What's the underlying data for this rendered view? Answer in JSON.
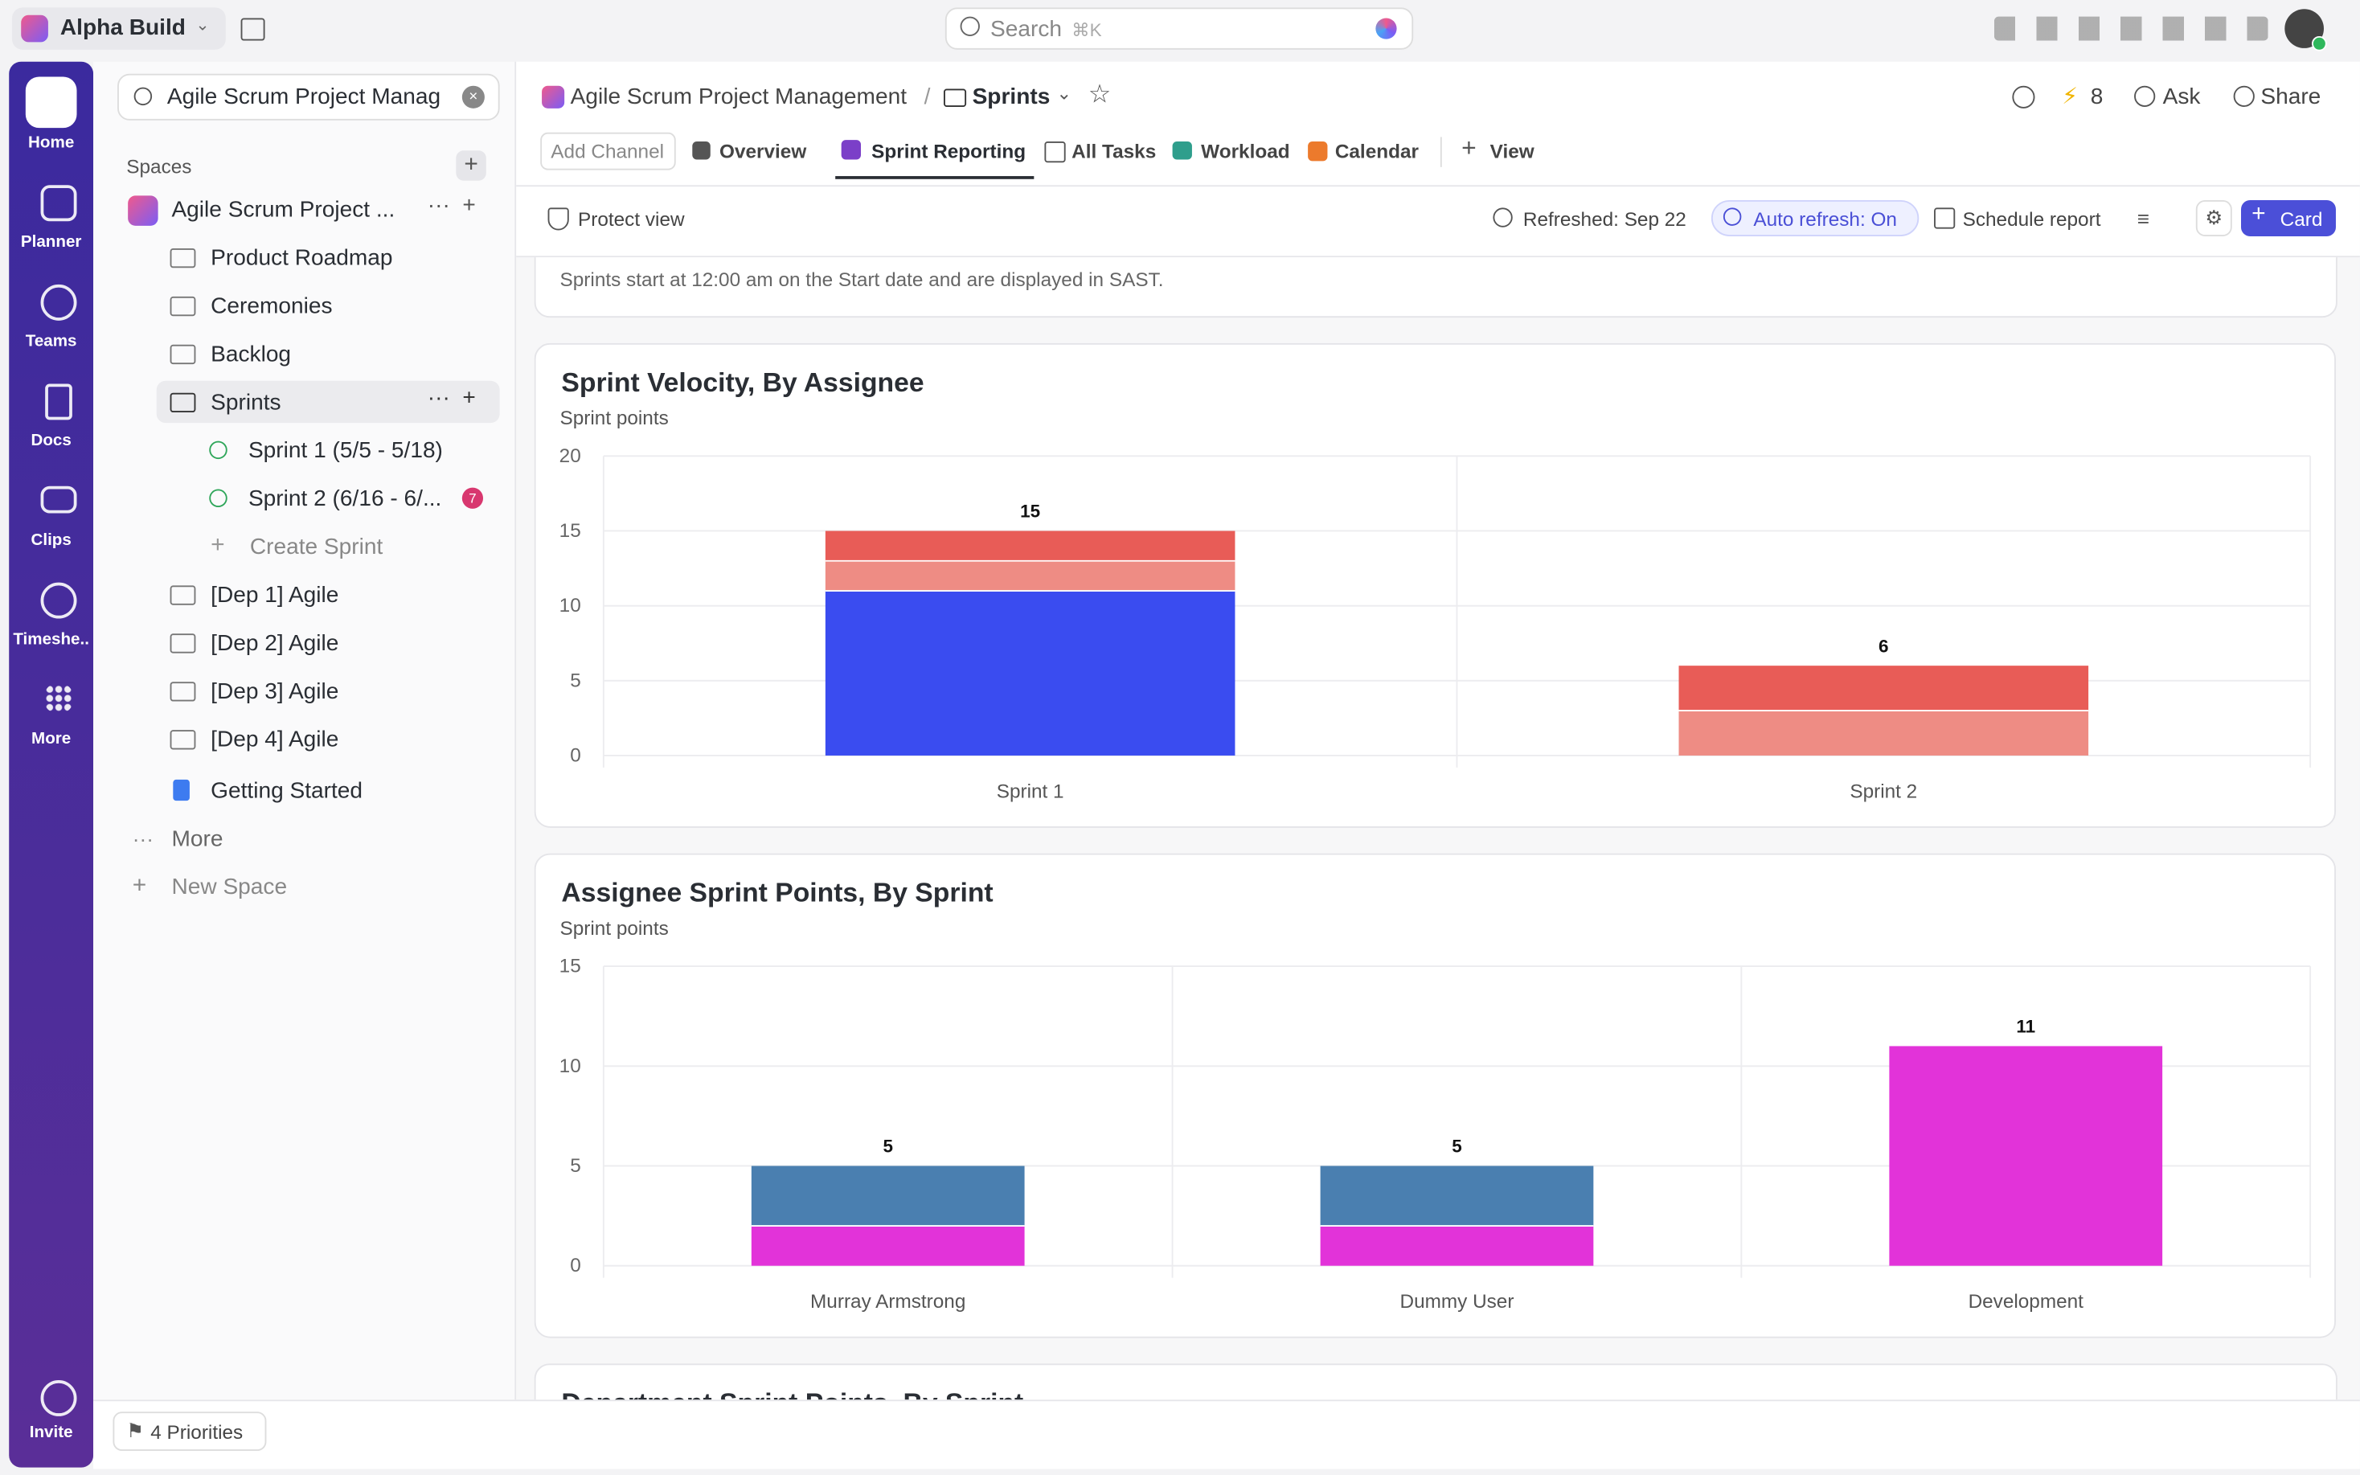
{
  "app": {
    "workspace": "Alpha Build",
    "search": "Search",
    "search_shortcut": "⌘K"
  },
  "rail": [
    "Home",
    "Planner",
    "Teams",
    "Docs",
    "Clips",
    "Timeshe..",
    "More",
    "Invite"
  ],
  "sidebar": {
    "search": "Agile Scrum Project Manag",
    "spaces": "Spaces",
    "space": "Agile Scrum Project ...",
    "folders": [
      "Product Roadmap",
      "Ceremonies",
      "Backlog",
      "Sprints"
    ],
    "sprints": [
      "Sprint 1 (5/5 - 5/18)",
      "Sprint 2 (6/16 - 6/..."
    ],
    "sprint_badge": 7,
    "create_sprint": "Create Sprint",
    "more_folders": [
      "[Dep 1] Agile",
      "[Dep 2] Agile",
      "[Dep 3] Agile",
      "[Dep 4] Agile"
    ],
    "doc": "Getting Started",
    "more": "More",
    "new_space": "New Space"
  },
  "bottom": {
    "priorities": "4 Priorities"
  },
  "header": {
    "breadcrumb": "Agile Scrum Project Management",
    "separator": "/",
    "current": "Sprints",
    "lightning_count": 8,
    "ask": "Ask",
    "share": "Share"
  },
  "tabs": [
    "Add Channel",
    "Overview",
    "Sprint Reporting",
    "All Tasks",
    "Workload",
    "Calendar",
    "View"
  ],
  "toolbar": {
    "protect": "Protect view",
    "refreshed": "Refreshed: Sep 22",
    "auto_refresh": "Auto refresh: On",
    "schedule": "Schedule report",
    "card": "Card"
  },
  "note": "Sprints start at 12:00 am on the Start date and are displayed in SAST.",
  "chart_data": [
    {
      "type": "bar",
      "stacked": true,
      "title": "Sprint Velocity, By Assignee",
      "subtitle": "Sprint points",
      "categories": [
        "Sprint 1",
        "Sprint 2"
      ],
      "series": [
        {
          "color": "#3a4cf0",
          "values": [
            11,
            null
          ]
        },
        {
          "color": "#ee8c84",
          "values": [
            2,
            3
          ]
        },
        {
          "color": "#e85c57",
          "values": [
            2,
            3
          ]
        }
      ],
      "total_labels": [
        15,
        6
      ],
      "ylim": [
        0,
        20
      ],
      "yticks": [
        0,
        5,
        10,
        15,
        20
      ],
      "grid": true
    },
    {
      "type": "bar",
      "stacked": true,
      "title": "Assignee Sprint Points, By Sprint",
      "subtitle": "Sprint points",
      "categories": [
        "Murray Armstrong",
        "Dummy User",
        "Development"
      ],
      "series": [
        {
          "color": "#e233d9",
          "values": [
            2,
            2,
            11
          ]
        },
        {
          "color": "#4a7fb0",
          "values": [
            3,
            3,
            null
          ]
        }
      ],
      "total_labels": [
        5,
        5,
        11
      ],
      "ylim": [
        0,
        15
      ],
      "yticks": [
        0,
        5,
        10,
        15
      ],
      "grid": true
    }
  ],
  "partial_card_title": "Department Sprint Points, By Sprint"
}
